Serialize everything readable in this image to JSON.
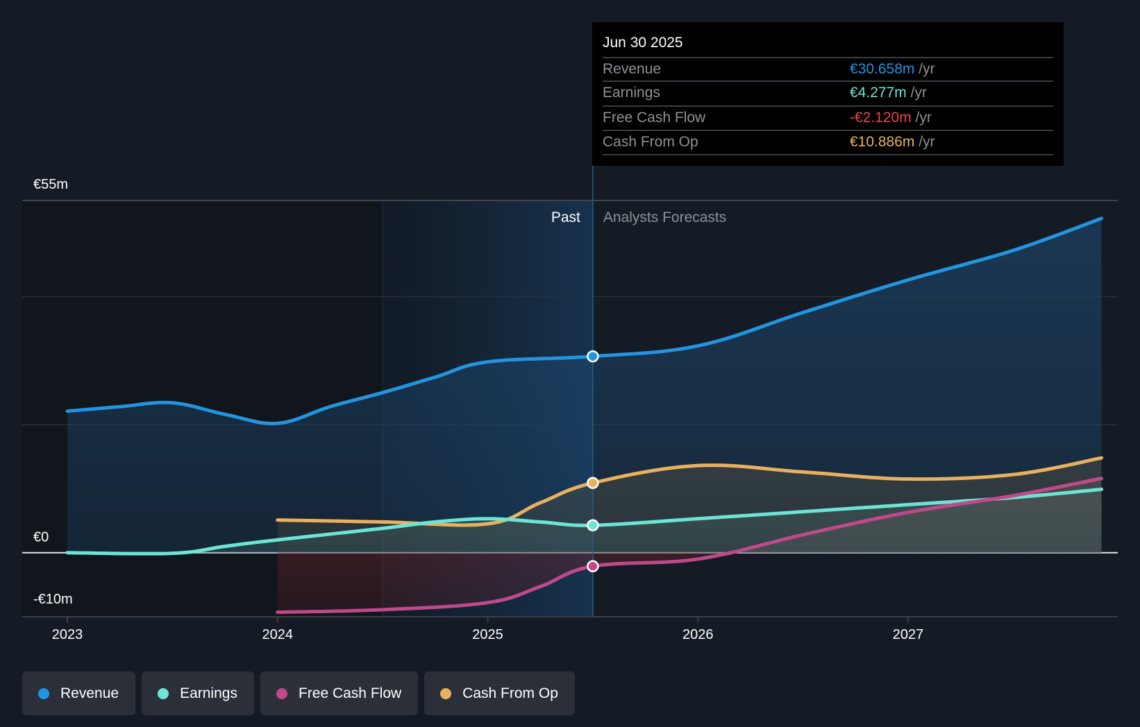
{
  "tooltip": {
    "date": "Jun 30 2025",
    "rows": [
      {
        "name": "Revenue",
        "value": "€30.658m",
        "unit": " /yr",
        "color": "#2394df"
      },
      {
        "name": "Earnings",
        "value": "€4.277m",
        "unit": " /yr",
        "color": "#6ce5d4"
      },
      {
        "name": "Free Cash Flow",
        "value": "-€2.120m",
        "unit": " /yr",
        "color": "#e84545"
      },
      {
        "name": "Cash From Op",
        "value": "€10.886m",
        "unit": " /yr",
        "color": "#e9b15f"
      }
    ]
  },
  "labels": {
    "past": "Past",
    "forecast": "Analysts Forecasts"
  },
  "legend": [
    {
      "label": "Revenue",
      "color": "#2394df"
    },
    {
      "label": "Earnings",
      "color": "#6ce5d4"
    },
    {
      "label": "Free Cash Flow",
      "color": "#c0498a"
    },
    {
      "label": "Cash From Op",
      "color": "#e9b15f"
    }
  ],
  "chart_data": {
    "type": "line",
    "title": "",
    "xlabel": "",
    "ylabel": "",
    "currency_unit": "€m",
    "xlim": [
      2022.99,
      2027.92
    ],
    "ylim": [
      -10,
      55
    ],
    "y_ticks": [
      {
        "value": 55,
        "label": "€55m"
      },
      {
        "value": 0,
        "label": "€0"
      },
      {
        "value": -10,
        "label": "-€10m"
      }
    ],
    "gridlines": [
      55,
      40,
      20,
      0,
      -10
    ],
    "x_ticks": [
      {
        "value": 2023,
        "label": "2023"
      },
      {
        "value": 2024,
        "label": "2024"
      },
      {
        "value": 2025,
        "label": "2025"
      },
      {
        "value": 2026,
        "label": "2026"
      },
      {
        "value": 2027,
        "label": "2027"
      }
    ],
    "past_band": [
      2024.5,
      2025.5
    ],
    "divider": 2025.5,
    "highlight_date": "Jun 30 2025",
    "series": [
      {
        "name": "Revenue",
        "color": "#2394df",
        "points": [
          [
            2023.0,
            22.1
          ],
          [
            2023.25,
            22.8
          ],
          [
            2023.5,
            23.4
          ],
          [
            2023.75,
            21.6
          ],
          [
            2024.0,
            20.2
          ],
          [
            2024.25,
            22.8
          ],
          [
            2024.5,
            25.0
          ],
          [
            2024.75,
            27.4
          ],
          [
            2025.0,
            29.8
          ],
          [
            2025.5,
            30.658
          ],
          [
            2026.0,
            32.3
          ],
          [
            2026.5,
            37.5
          ],
          [
            2027.0,
            42.6
          ],
          [
            2027.5,
            47.2
          ],
          [
            2027.92,
            52.2
          ]
        ]
      },
      {
        "name": "Earnings",
        "color": "#6ce5d4",
        "points": [
          [
            2023.0,
            0.0
          ],
          [
            2023.5,
            -0.1
          ],
          [
            2023.75,
            1.0
          ],
          [
            2024.0,
            2.0
          ],
          [
            2024.5,
            3.8
          ],
          [
            2024.75,
            4.8
          ],
          [
            2025.0,
            5.3
          ],
          [
            2025.25,
            4.8
          ],
          [
            2025.5,
            4.277
          ],
          [
            2026.0,
            5.3
          ],
          [
            2026.5,
            6.4
          ],
          [
            2027.0,
            7.5
          ],
          [
            2027.5,
            8.6
          ],
          [
            2027.92,
            9.9
          ]
        ]
      },
      {
        "name": "Free Cash Flow",
        "color": "#c0498a",
        "points": [
          [
            2024.0,
            -9.3
          ],
          [
            2024.5,
            -8.9
          ],
          [
            2025.0,
            -7.8
          ],
          [
            2025.25,
            -5.3
          ],
          [
            2025.5,
            -2.12
          ],
          [
            2026.0,
            -1.0
          ],
          [
            2026.5,
            2.8
          ],
          [
            2027.0,
            6.3
          ],
          [
            2027.5,
            8.9
          ],
          [
            2027.92,
            11.6
          ]
        ]
      },
      {
        "name": "Cash From Op",
        "color": "#e9b15f",
        "points": [
          [
            2024.0,
            5.1
          ],
          [
            2024.5,
            4.8
          ],
          [
            2025.0,
            4.5
          ],
          [
            2025.25,
            7.8
          ],
          [
            2025.5,
            10.886
          ],
          [
            2026.0,
            13.6
          ],
          [
            2026.5,
            12.6
          ],
          [
            2027.0,
            11.5
          ],
          [
            2027.5,
            12.2
          ],
          [
            2027.92,
            14.8
          ]
        ]
      }
    ]
  }
}
